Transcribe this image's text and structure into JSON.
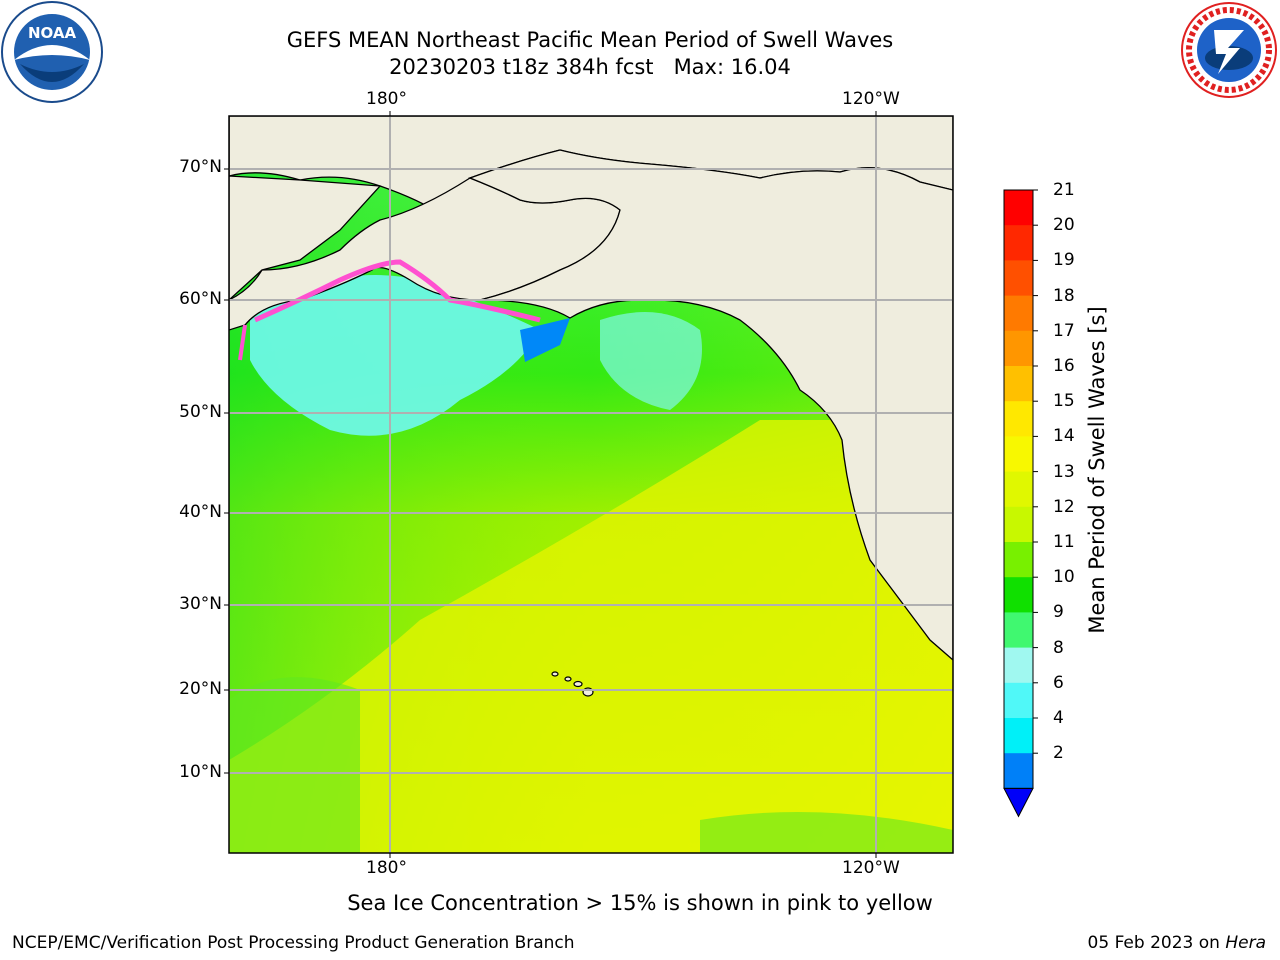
{
  "title": {
    "line1": "GEFS MEAN Northeast Pacific Mean Period of Swell Waves",
    "line2": "20230203 t18z 384h fcst   Max: 16.04"
  },
  "logos": {
    "left": {
      "icon": "noaa-logo",
      "text": "NOAA"
    },
    "right": {
      "icon": "nws-logo",
      "text": "NATIONAL WEATHER SERVICE"
    }
  },
  "axes": {
    "lon_top": [
      "180°",
      "120°W"
    ],
    "lon_bottom": [
      "180°",
      "120°W"
    ],
    "lat": [
      "70°N",
      "60°N",
      "50°N",
      "40°N",
      "30°N",
      "20°N",
      "10°N"
    ]
  },
  "colorbar": {
    "title": "Mean Period of Swell Waves [s]",
    "ticks": [
      "21",
      "20",
      "19",
      "18",
      "17",
      "16",
      "15",
      "14",
      "13",
      "12",
      "11",
      "10",
      "9",
      "8",
      "7",
      "6",
      "5",
      "4",
      "3",
      "2"
    ],
    "colors": [
      "#ff0000",
      "#ff2800",
      "#ff5000",
      "#ff7a00",
      "#ff9600",
      "#ffc000",
      "#ffe800",
      "#f8f800",
      "#e0f800",
      "#c8f800",
      "#78f000",
      "#10e000",
      "#40f870",
      "#a0f8f0",
      "#50f8f8",
      "#00f0f8",
      "#0080f8",
      "#0000f8"
    ],
    "tick_labels_shown": [
      "21",
      "20",
      "19",
      "18",
      "17",
      "16",
      "15",
      "14",
      "13",
      "12",
      "11",
      "10",
      "9",
      "8",
      "6",
      "4",
      "2"
    ]
  },
  "note": "Sea Ice Concentration > 15% is shown in pink to yellow",
  "footer": {
    "left": "NCEP/EMC/Verification Post Processing Product Generation Branch",
    "right_date": "05 Feb 2023 on ",
    "right_host": "Hera"
  }
}
